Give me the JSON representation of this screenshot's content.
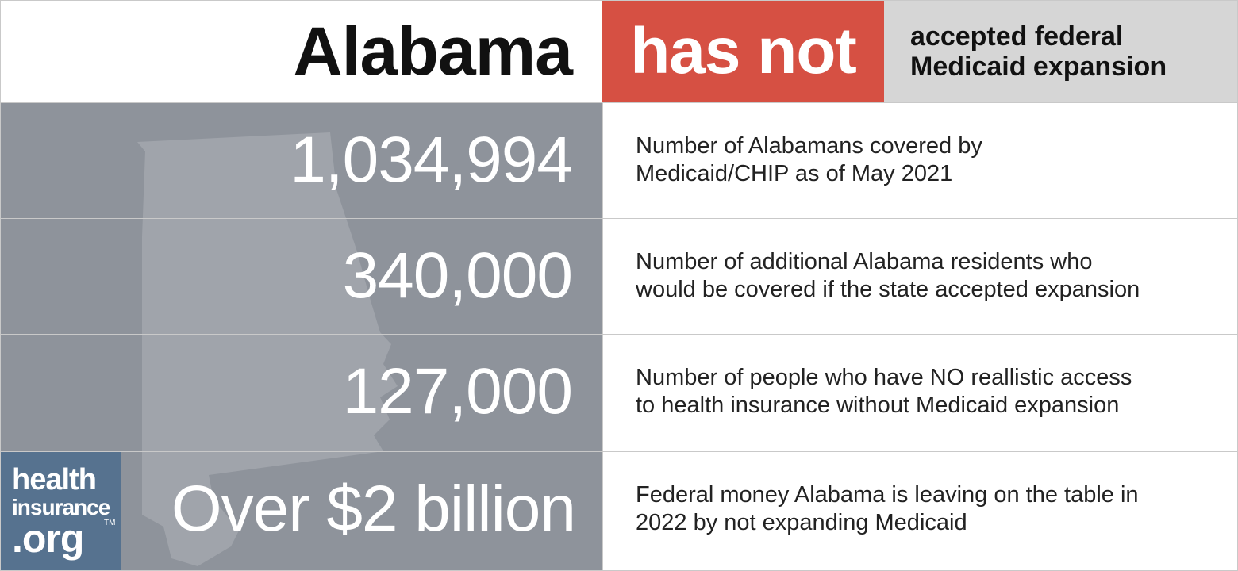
{
  "header": {
    "state": "Alabama",
    "status": "has not",
    "expansion_line1": "accepted federal",
    "expansion_line2": "Medicaid expansion"
  },
  "stats": [
    {
      "value": "1,034,994",
      "line1": "Number of Alabamans covered by",
      "line2": "Medicaid/CHIP as of May 2021"
    },
    {
      "value": "340,000",
      "line1": "Number of additional Alabama residents who",
      "line2": "would be covered if the state accepted expansion"
    },
    {
      "value": "127,000",
      "line1": "Number of people who have NO reallistic access",
      "line2": "to health insurance without Medicaid expansion"
    },
    {
      "value": "Over $2 billion",
      "line1": "Federal money Alabama is leaving on the table in",
      "line2": "2022 by not expanding Medicaid"
    }
  ],
  "logo": {
    "line1": "health",
    "line2": "insurance",
    "line3": ".org",
    "tm": "TM"
  },
  "colors": {
    "status_red": "#d65043",
    "panel_grey": "#8e939b",
    "logo_blue": "#56728f",
    "expansion_grey": "#d6d6d6"
  }
}
